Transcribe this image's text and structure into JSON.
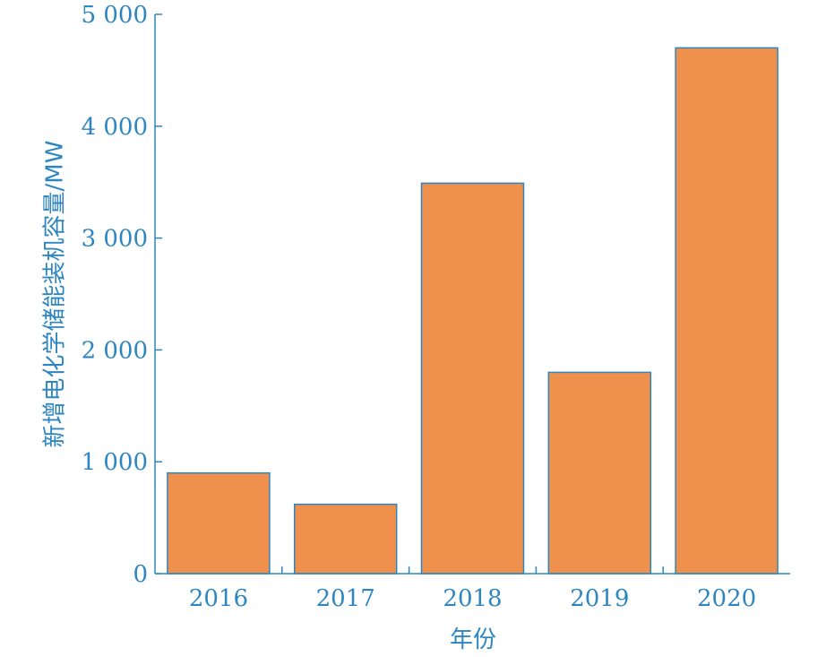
{
  "chart_data": {
    "type": "bar",
    "categories": [
      "2016",
      "2017",
      "2018",
      "2019",
      "2020"
    ],
    "values": [
      900,
      620,
      3490,
      1800,
      4700
    ],
    "xlabel": "年份",
    "ylabel": "新增电化学储能装机容量/MW",
    "ylim": [
      0,
      5000
    ],
    "yticks": [
      0,
      1000,
      2000,
      3000,
      4000,
      5000
    ],
    "ytick_labels": [
      "0",
      "1 000",
      "2 000",
      "3 000",
      "4 000",
      "5 000"
    ],
    "grid": false,
    "legend": "none"
  },
  "colors": {
    "bar_fill": "#F0904D",
    "bar_stroke": "#2E86C1",
    "axis": "#2E86C1",
    "text": "#2E86C1"
  }
}
